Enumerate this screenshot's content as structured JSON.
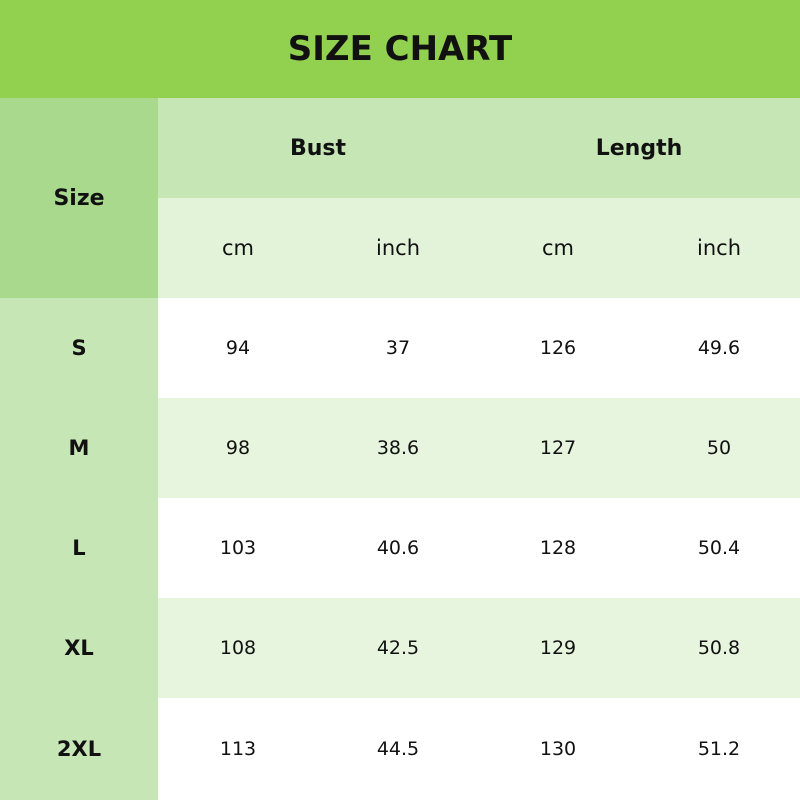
{
  "title": "SIZE CHART",
  "colors": {
    "title_bg": "#92d050",
    "size_header_bg": "#a9d98c",
    "header_bg": "#c6e6b6",
    "unit_bg": "#e3f3da",
    "alt_row_bg": "#e7f5df"
  },
  "table": {
    "size_header": "Size",
    "groups": [
      "Bust",
      "Length"
    ],
    "units": [
      "cm",
      "inch",
      "cm",
      "inch"
    ],
    "rows": [
      {
        "size": "S",
        "values": [
          "94",
          "37",
          "126",
          "49.6"
        ]
      },
      {
        "size": "M",
        "values": [
          "98",
          "38.6",
          "127",
          "50"
        ]
      },
      {
        "size": "L",
        "values": [
          "103",
          "40.6",
          "128",
          "50.4"
        ]
      },
      {
        "size": "XL",
        "values": [
          "108",
          "42.5",
          "129",
          "50.8"
        ]
      },
      {
        "size": "2XL",
        "values": [
          "113",
          "44.5",
          "130",
          "51.2"
        ]
      }
    ]
  }
}
